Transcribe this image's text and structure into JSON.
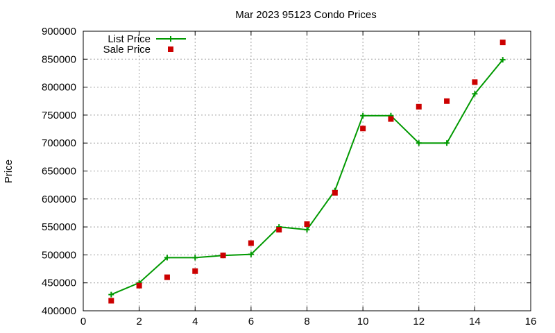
{
  "chart_data": {
    "type": "line",
    "title": "Mar 2023 95123 Condo Prices",
    "xlabel": "",
    "ylabel": "Price",
    "xlim": [
      0,
      16
    ],
    "ylim": [
      400000,
      900000
    ],
    "xticks": [
      0,
      2,
      4,
      6,
      8,
      10,
      12,
      14,
      16
    ],
    "yticks": [
      400000,
      450000,
      500000,
      550000,
      600000,
      650000,
      700000,
      750000,
      800000,
      850000,
      900000
    ],
    "grid": true,
    "legend_position": "top-left",
    "series": [
      {
        "name": "List Price",
        "style": "line-with-plus-markers",
        "color": "#009900",
        "points": [
          [
            1,
            429000
          ],
          [
            2,
            450000
          ],
          [
            3,
            495000
          ],
          [
            4,
            495000
          ],
          [
            5,
            499000
          ],
          [
            6,
            501000
          ],
          [
            7,
            550000
          ],
          [
            8,
            545000
          ],
          [
            9,
            615000
          ],
          [
            10,
            749000
          ],
          [
            11,
            749000
          ],
          [
            12,
            700000
          ],
          [
            13,
            700000
          ],
          [
            14,
            788000
          ],
          [
            15,
            849000
          ]
        ]
      },
      {
        "name": "Sale Price",
        "style": "square-markers",
        "color": "#cc0000",
        "points": [
          [
            1,
            418000
          ],
          [
            2,
            445000
          ],
          [
            3,
            460000
          ],
          [
            4,
            471000
          ],
          [
            5,
            499000
          ],
          [
            6,
            521000
          ],
          [
            7,
            545000
          ],
          [
            8,
            555000
          ],
          [
            9,
            611000
          ],
          [
            10,
            726000
          ],
          [
            11,
            743000
          ],
          [
            12,
            765000
          ],
          [
            13,
            775000
          ],
          [
            14,
            809000
          ],
          [
            15,
            880000
          ]
        ]
      }
    ]
  }
}
